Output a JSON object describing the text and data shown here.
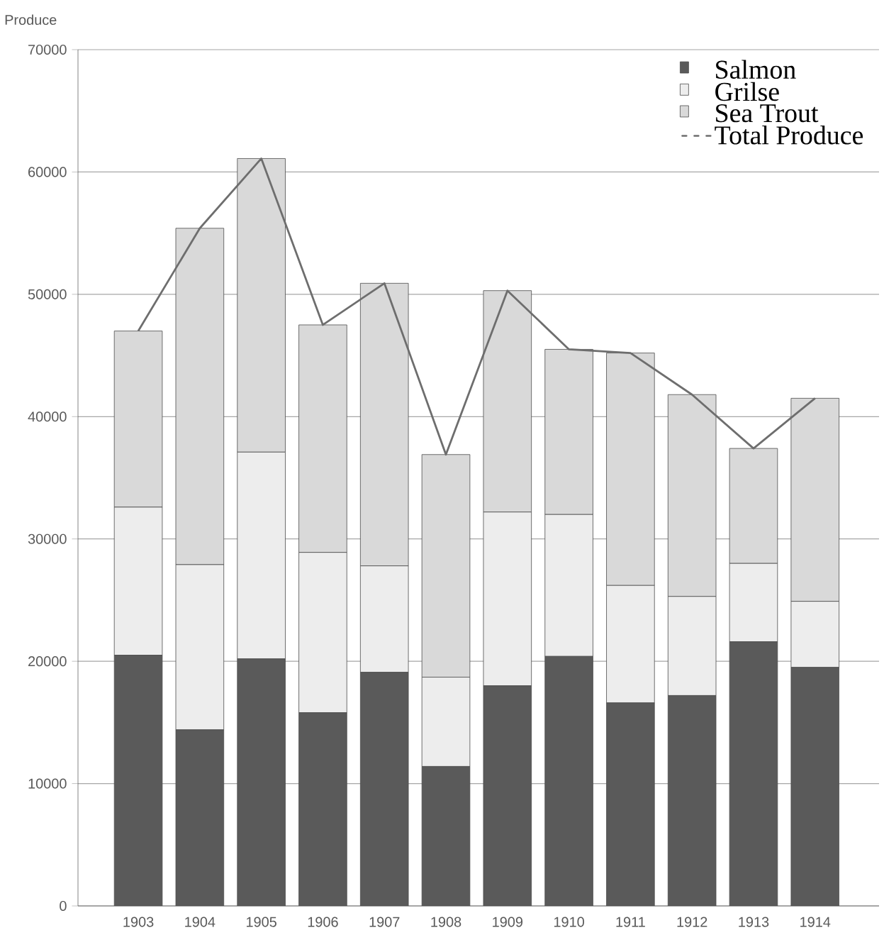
{
  "chart_data": {
    "type": "bar",
    "ylabel": "Produce",
    "categories": [
      "1903",
      "1904",
      "1905",
      "1906",
      "1907",
      "1908",
      "1909",
      "1910",
      "1911",
      "1912",
      "1913",
      "1914"
    ],
    "stacked": true,
    "grid": "y",
    "legend": "top right",
    "ylim": [
      0,
      70000
    ],
    "yticks": [
      0,
      10000,
      20000,
      30000,
      40000,
      50000,
      60000,
      70000
    ],
    "series": [
      {
        "name": "Salmon",
        "color": "#5a5a5a",
        "values": [
          20500,
          14400,
          20200,
          15800,
          19100,
          11400,
          18000,
          20400,
          16600,
          17200,
          21600,
          19500
        ]
      },
      {
        "name": "Grilse",
        "color": "#ededed",
        "values": [
          12100,
          13500,
          16900,
          13100,
          8700,
          7300,
          14200,
          11600,
          9600,
          8100,
          6400,
          5400
        ]
      },
      {
        "name": "Sea Trout",
        "color": "#d9d9d9",
        "values": [
          14400,
          27500,
          24000,
          18600,
          23100,
          18200,
          18100,
          13500,
          19000,
          16500,
          9400,
          16600
        ]
      },
      {
        "name": "Total Produce",
        "type": "line",
        "color": "#6e6e6e",
        "values": [
          47000,
          55400,
          61100,
          47500,
          50900,
          36900,
          50300,
          45500,
          45200,
          41800,
          37400,
          41500
        ]
      }
    ]
  }
}
